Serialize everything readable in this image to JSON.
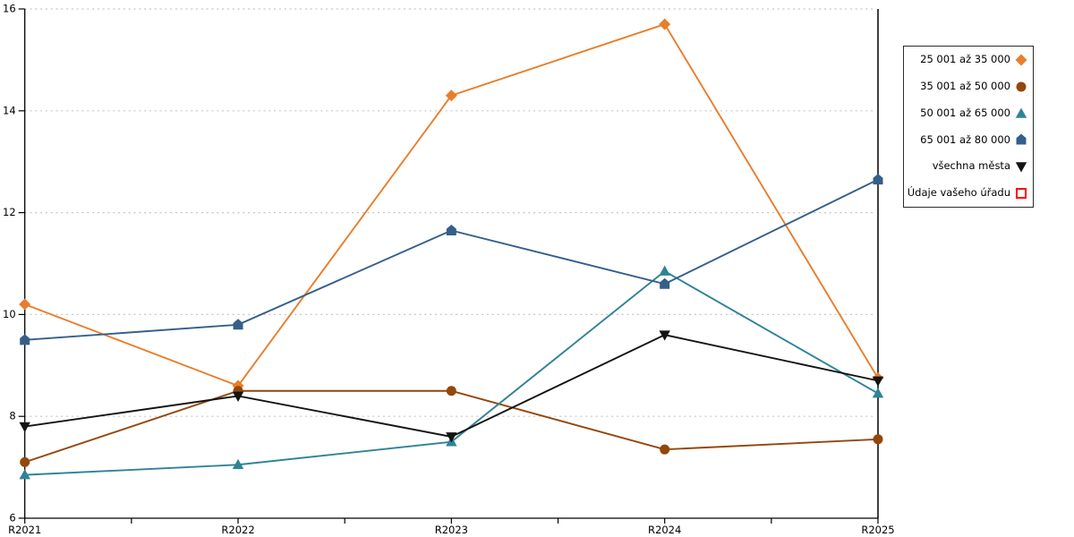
{
  "chart_data": {
    "type": "line",
    "title": "",
    "xlabel": "",
    "ylabel": "",
    "categories": [
      "R2021",
      "R2022",
      "R2023",
      "R2024",
      "R2025"
    ],
    "ylim": [
      6,
      16
    ],
    "y_ticks": [
      6,
      8,
      10,
      12,
      14,
      16
    ],
    "grid": "horizontal-dotted",
    "legend_position": "right",
    "series": [
      {
        "name": "25 001 až 35 000",
        "marker": "diamond",
        "color": "#E87E2B",
        "values": [
          10.2,
          8.6,
          14.3,
          15.7,
          8.75
        ]
      },
      {
        "name": "35 001 až 50 000",
        "marker": "circle",
        "color": "#93470B",
        "values": [
          7.1,
          8.5,
          8.5,
          7.35,
          7.55
        ]
      },
      {
        "name": "50 001 až 65 000",
        "marker": "triangle-up",
        "color": "#2F8397",
        "values": [
          6.85,
          7.05,
          7.5,
          10.85,
          8.45
        ]
      },
      {
        "name": "65 001 až 80 000",
        "marker": "pentagon",
        "color": "#345F8A",
        "values": [
          9.5,
          9.8,
          11.65,
          10.6,
          12.65
        ]
      },
      {
        "name": "všechna města",
        "marker": "triangle-down",
        "color": "#141414",
        "values": [
          7.8,
          8.4,
          7.6,
          9.6,
          8.7
        ]
      },
      {
        "name": "Údaje vašeho úřadu",
        "marker": "open-square",
        "color": "#FF0000",
        "values": []
      }
    ],
    "colors": {
      "grid": "#C5C5C5",
      "axis": "#000000",
      "background": "#FFFFFF"
    }
  }
}
